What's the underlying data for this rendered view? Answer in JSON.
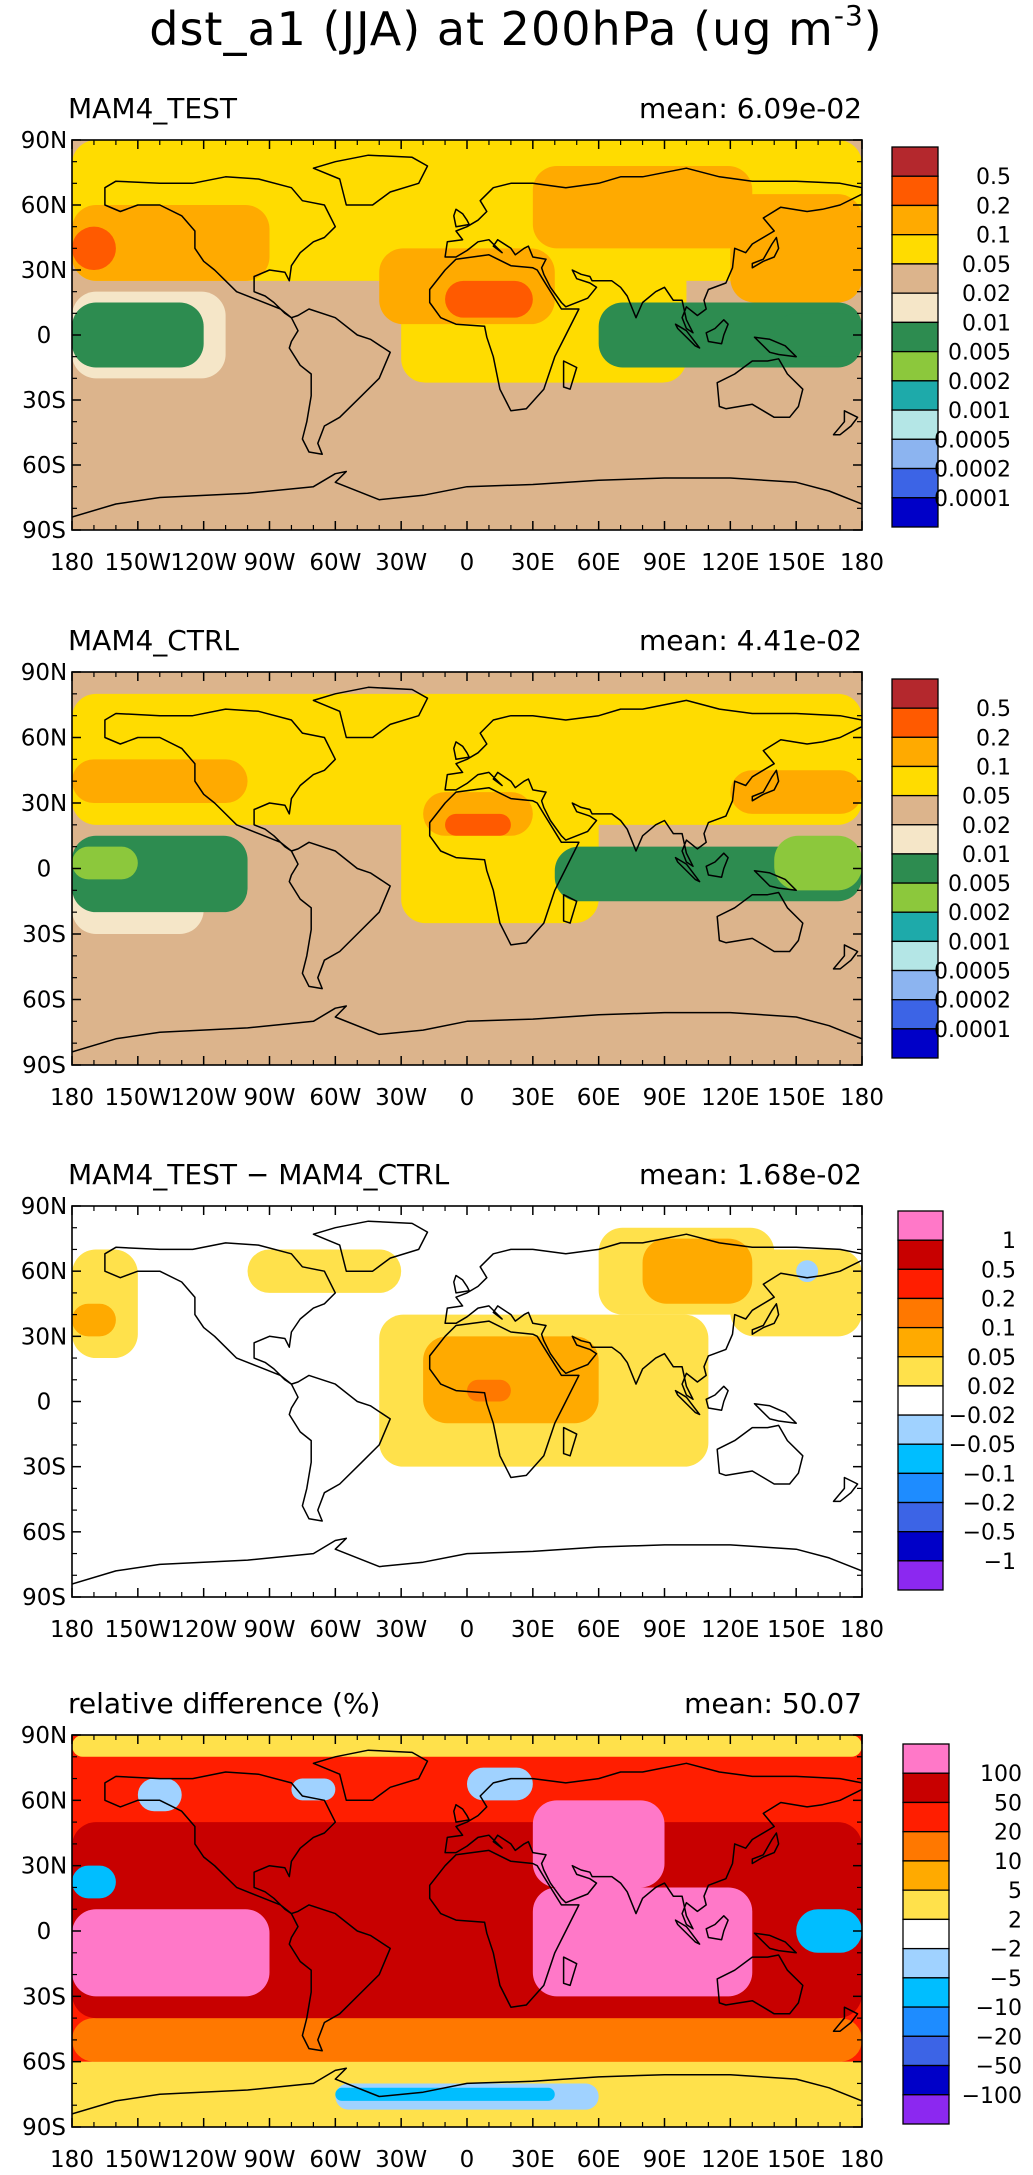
{
  "title": "dst_a1 (JJA) at 200hPa (ug m",
  "title_sup": "-3",
  "title_close": ")",
  "lat_ticks": [
    "90N",
    "60N",
    "30N",
    "0",
    "30S",
    "60S",
    "90S"
  ],
  "lon_ticks": [
    "180",
    "150W",
    "120W",
    "90W",
    "60W",
    "30W",
    "0",
    "30E",
    "60E",
    "90E",
    "120E",
    "150E",
    "180"
  ],
  "colors": {
    "abs": [
      "#0000c8",
      "#3c64e6",
      "#8cb4f0",
      "#b4e6e6",
      "#1eaaaa",
      "#8cc83c",
      "#2d8c50",
      "#f5e6c8",
      "#dcb48c",
      "#ffdc00",
      "#ffaa00",
      "#ff5a00",
      "#b4282d"
    ],
    "diff": [
      "#8c28f0",
      "#0000c8",
      "#3c64e6",
      "#1e8cff",
      "#00beff",
      "#a0d2ff",
      "#ffffff",
      "#ffe14b",
      "#ffaa00",
      "#ff7800",
      "#ff1e00",
      "#c80000",
      "#ff78c8"
    ],
    "map_outline": "#000000",
    "missing_band": "#fbf6e4"
  },
  "chart_data": [
    {
      "type": "heatmap",
      "panel_label": "MAM4_TEST",
      "mean_text": "mean: 6.09e-02",
      "mean": 0.0609,
      "xlim": [
        -180,
        180
      ],
      "ylim": [
        -90,
        90
      ],
      "colorbar_levels": [
        "0.5",
        "0.2",
        "0.1",
        "0.05",
        "0.02",
        "0.01",
        "0.005",
        "0.002",
        "0.001",
        "0.0005",
        "0.0002",
        "0.0001"
      ],
      "regions": [
        {
          "lon": [
            -180,
            180
          ],
          "lat": [
            -90,
            90
          ],
          "level": 8
        },
        {
          "lon": [
            -180,
            180
          ],
          "lat": [
            25,
            90
          ],
          "level": 9
        },
        {
          "lon": [
            -30,
            100
          ],
          "lat": [
            -22,
            35
          ],
          "level": 9
        },
        {
          "lon": [
            -180,
            -90
          ],
          "lat": [
            25,
            60
          ],
          "level": 10
        },
        {
          "lon": [
            120,
            180
          ],
          "lat": [
            15,
            65
          ],
          "level": 10
        },
        {
          "lon": [
            30,
            130
          ],
          "lat": [
            40,
            78
          ],
          "level": 10
        },
        {
          "lon": [
            -40,
            40
          ],
          "lat": [
            5,
            40
          ],
          "level": 10
        },
        {
          "lon": [
            -10,
            30
          ],
          "lat": [
            8,
            25
          ],
          "level": 11
        },
        {
          "lon": [
            -180,
            -160
          ],
          "lat": [
            30,
            50
          ],
          "level": 11
        },
        {
          "lon": [
            -180,
            -110
          ],
          "lat": [
            -20,
            20
          ],
          "level": 7
        },
        {
          "lon": [
            -180,
            -120
          ],
          "lat": [
            -15,
            15
          ],
          "level": 6
        },
        {
          "lon": [
            60,
            180
          ],
          "lat": [
            -15,
            15
          ],
          "level": 6
        },
        {
          "lon": [
            140,
            180
          ],
          "lat": [
            -10,
            10
          ],
          "level": 6
        }
      ]
    },
    {
      "type": "heatmap",
      "panel_label": "MAM4_CTRL",
      "mean_text": "mean: 4.41e-02",
      "mean": 0.0441,
      "xlim": [
        -180,
        180
      ],
      "ylim": [
        -90,
        90
      ],
      "colorbar_levels": [
        "0.5",
        "0.2",
        "0.1",
        "0.05",
        "0.02",
        "0.01",
        "0.005",
        "0.002",
        "0.001",
        "0.0005",
        "0.0002",
        "0.0001"
      ],
      "regions": [
        {
          "lon": [
            -180,
            180
          ],
          "lat": [
            -90,
            90
          ],
          "level": 8
        },
        {
          "lon": [
            -180,
            180
          ],
          "lat": [
            20,
            80
          ],
          "level": 9
        },
        {
          "lon": [
            -30,
            60
          ],
          "lat": [
            -25,
            40
          ],
          "level": 9
        },
        {
          "lon": [
            -180,
            -120
          ],
          "lat": [
            -30,
            0
          ],
          "level": 7
        },
        {
          "lon": [
            -180,
            -100
          ],
          "lat": [
            30,
            50
          ],
          "level": 10
        },
        {
          "lon": [
            120,
            180
          ],
          "lat": [
            25,
            45
          ],
          "level": 10
        },
        {
          "lon": [
            -20,
            30
          ],
          "lat": [
            15,
            35
          ],
          "level": 10
        },
        {
          "lon": [
            -10,
            20
          ],
          "lat": [
            15,
            25
          ],
          "level": 11
        },
        {
          "lon": [
            -180,
            -100
          ],
          "lat": [
            -20,
            15
          ],
          "level": 6
        },
        {
          "lon": [
            40,
            180
          ],
          "lat": [
            -15,
            10
          ],
          "level": 6
        },
        {
          "lon": [
            140,
            180
          ],
          "lat": [
            -10,
            15
          ],
          "level": 5
        },
        {
          "lon": [
            -180,
            -150
          ],
          "lat": [
            -5,
            10
          ],
          "level": 5
        }
      ]
    },
    {
      "type": "heatmap",
      "panel_label": "MAM4_TEST − MAM4_CTRL",
      "mean_text": "mean: 1.68e-02",
      "mean": 0.0168,
      "xlim": [
        -180,
        180
      ],
      "ylim": [
        -90,
        90
      ],
      "colorbar_levels": [
        "1",
        "0.5",
        "0.2",
        "0.1",
        "0.05",
        "0.02",
        "−0.02",
        "−0.05",
        "−0.1",
        "−0.2",
        "−0.5",
        "−1"
      ],
      "regions": [
        {
          "lon": [
            -180,
            180
          ],
          "lat": [
            -90,
            90
          ],
          "level": 6
        },
        {
          "lon": [
            -40,
            110
          ],
          "lat": [
            -30,
            40
          ],
          "level": 7
        },
        {
          "lon": [
            60,
            140
          ],
          "lat": [
            40,
            80
          ],
          "level": 7
        },
        {
          "lon": [
            -180,
            -150
          ],
          "lat": [
            20,
            70
          ],
          "level": 7
        },
        {
          "lon": [
            120,
            180
          ],
          "lat": [
            30,
            70
          ],
          "level": 7
        },
        {
          "lon": [
            -100,
            -30
          ],
          "lat": [
            50,
            70
          ],
          "level": 7
        },
        {
          "lon": [
            -180,
            -160
          ],
          "lat": [
            30,
            45
          ],
          "level": 8
        },
        {
          "lon": [
            80,
            130
          ],
          "lat": [
            45,
            75
          ],
          "level": 8
        },
        {
          "lon": [
            -20,
            60
          ],
          "lat": [
            -10,
            30
          ],
          "level": 8
        },
        {
          "lon": [
            0,
            20
          ],
          "lat": [
            0,
            10
          ],
          "level": 9
        },
        {
          "lon": [
            150,
            160
          ],
          "lat": [
            55,
            65
          ],
          "level": 5
        }
      ]
    },
    {
      "type": "heatmap",
      "panel_label": "relative difference (%)",
      "mean_text": "mean: 50.07",
      "mean": 50.07,
      "xlim": [
        -180,
        180
      ],
      "ylim": [
        -90,
        90
      ],
      "colorbar_levels": [
        "100",
        "50",
        "20",
        "10",
        "5",
        "2",
        "−2",
        "−5",
        "−10",
        "−20",
        "−50",
        "−100"
      ],
      "regions": [
        {
          "lon": [
            -180,
            180
          ],
          "lat": [
            -90,
            90
          ],
          "level": 10
        },
        {
          "lon": [
            -180,
            180
          ],
          "lat": [
            -90,
            -60
          ],
          "level": 7
        },
        {
          "lon": [
            -180,
            180
          ],
          "lat": [
            -60,
            -40
          ],
          "level": 9
        },
        {
          "lon": [
            -180,
            180
          ],
          "lat": [
            -40,
            50
          ],
          "level": 11
        },
        {
          "lon": [
            -180,
            -90
          ],
          "lat": [
            -30,
            10
          ],
          "level": 12
        },
        {
          "lon": [
            30,
            130
          ],
          "lat": [
            -30,
            20
          ],
          "level": 12
        },
        {
          "lon": [
            30,
            90
          ],
          "lat": [
            20,
            60
          ],
          "level": 12
        },
        {
          "lon": [
            -150,
            -130
          ],
          "lat": [
            55,
            70
          ],
          "level": 5
        },
        {
          "lon": [
            -80,
            -60
          ],
          "lat": [
            60,
            70
          ],
          "level": 5
        },
        {
          "lon": [
            0,
            30
          ],
          "lat": [
            60,
            75
          ],
          "level": 5
        },
        {
          "lon": [
            -180,
            -160
          ],
          "lat": [
            15,
            30
          ],
          "level": 4
        },
        {
          "lon": [
            150,
            180
          ],
          "lat": [
            -10,
            10
          ],
          "level": 4
        },
        {
          "lon": [
            -60,
            60
          ],
          "lat": [
            -82,
            -70
          ],
          "level": 5
        },
        {
          "lon": [
            -60,
            40
          ],
          "lat": [
            -78,
            -72
          ],
          "level": 4
        },
        {
          "lon": [
            -180,
            180
          ],
          "lat": [
            80,
            90
          ],
          "level": 7
        }
      ]
    }
  ]
}
